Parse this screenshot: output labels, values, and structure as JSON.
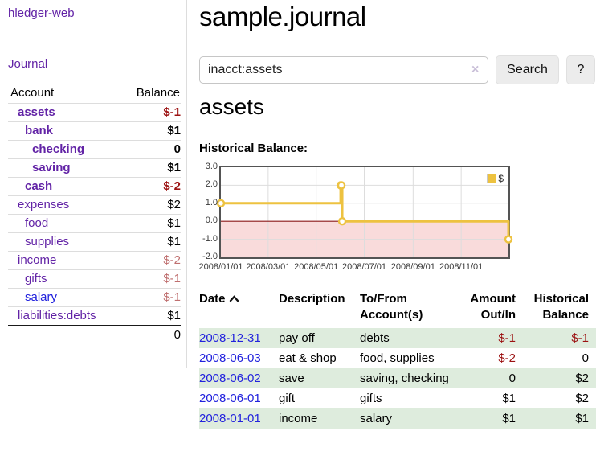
{
  "app": {
    "title": "hledger-web",
    "nav_journal": "Journal"
  },
  "sidebar": {
    "accounts_header": {
      "account": "Account",
      "balance": "Balance"
    },
    "accounts": [
      {
        "name": "assets",
        "depth": 1,
        "bold": true,
        "link_color": "purple",
        "balance": "$-1",
        "balance_style": "neg-strong"
      },
      {
        "name": "bank",
        "depth": 2,
        "bold": true,
        "link_color": "purple",
        "balance": "$1",
        "balance_style": "pos"
      },
      {
        "name": "checking",
        "depth": 3,
        "bold": true,
        "link_color": "purple",
        "balance": "0",
        "balance_style": "pos"
      },
      {
        "name": "saving",
        "depth": 3,
        "bold": true,
        "link_color": "purple",
        "balance": "$1",
        "balance_style": "pos"
      },
      {
        "name": "cash",
        "depth": 2,
        "bold": true,
        "link_color": "purple",
        "balance": "$-2",
        "balance_style": "neg-strong"
      },
      {
        "name": "expenses",
        "depth": 1,
        "bold": false,
        "link_color": "purple",
        "balance": "$2",
        "balance_style": "pos"
      },
      {
        "name": "food",
        "depth": 2,
        "bold": false,
        "link_color": "purple",
        "balance": "$1",
        "balance_style": "pos"
      },
      {
        "name": "supplies",
        "depth": 2,
        "bold": false,
        "link_color": "purple",
        "balance": "$1",
        "balance_style": "pos"
      },
      {
        "name": "income",
        "depth": 1,
        "bold": false,
        "link_color": "purple",
        "balance": "$-2",
        "balance_style": "neg-soft"
      },
      {
        "name": "gifts",
        "depth": 2,
        "bold": false,
        "link_color": "purple",
        "balance": "$-1",
        "balance_style": "neg-soft"
      },
      {
        "name": "salary",
        "depth": 2,
        "bold": false,
        "link_color": "blue",
        "balance": "$-1",
        "balance_style": "neg-soft"
      },
      {
        "name": "liabilities:debts",
        "depth": 1,
        "bold": false,
        "link_color": "purple",
        "balance": "$1",
        "balance_style": "pos"
      }
    ],
    "total": "0"
  },
  "main": {
    "title": "sample.journal",
    "search": {
      "value": "inacct:assets",
      "clear_icon": "×",
      "button": "Search",
      "help_button": "?"
    },
    "account_heading": "assets",
    "chart_label": "Historical Balance:"
  },
  "chart_data": {
    "type": "line",
    "step": true,
    "title": "Historical Balance",
    "series": [
      {
        "name": "$",
        "color": "#edc240",
        "points": [
          [
            "2008-01-01",
            1
          ],
          [
            "2008-06-01",
            2
          ],
          [
            "2008-06-02",
            2
          ],
          [
            "2008-06-03",
            0
          ],
          [
            "2008-12-31",
            -1
          ]
        ]
      }
    ],
    "x_range": [
      "2008-01-01",
      "2008-12-31"
    ],
    "x_ticks": [
      "2008/01/01",
      "2008/03/01",
      "2008/05/01",
      "2008/07/01",
      "2008/09/01",
      "2008/11/01"
    ],
    "y_ticks": [
      3,
      2,
      1,
      0,
      -1,
      -2
    ],
    "ylim": [
      -2,
      3
    ],
    "grid": true,
    "legend_position": "top-right",
    "negative_region_color": "#f9dbdb",
    "zero_line_color": "#8b1a1a",
    "grid_color": "#dddddd",
    "marker": {
      "fill": "#ffffff",
      "radius": 4
    }
  },
  "register": {
    "columns": [
      {
        "label": "Date",
        "sortable": true,
        "sort": "asc"
      },
      {
        "label": "Description"
      },
      {
        "label": "To/From Account(s)"
      },
      {
        "label": "Amount Out/In",
        "align": "right"
      },
      {
        "label": "Historical Balance",
        "align": "right"
      }
    ],
    "rows": [
      {
        "date": "2008-12-31",
        "description": "pay off",
        "accounts": "debts",
        "amount": "$-1",
        "amount_neg": true,
        "balance": "$-1",
        "balance_neg": true
      },
      {
        "date": "2008-06-03",
        "description": "eat & shop",
        "accounts": "food, supplies",
        "amount": "$-2",
        "amount_neg": true,
        "balance": "0",
        "balance_neg": false
      },
      {
        "date": "2008-06-02",
        "description": "save",
        "accounts": "saving, checking",
        "amount": "0",
        "amount_neg": false,
        "balance": "$2",
        "balance_neg": false
      },
      {
        "date": "2008-06-01",
        "description": "gift",
        "accounts": "gifts",
        "amount": "$1",
        "amount_neg": false,
        "balance": "$2",
        "balance_neg": false
      },
      {
        "date": "2008-01-01",
        "description": "income",
        "accounts": "salary",
        "amount": "$1",
        "amount_neg": false,
        "balance": "$1",
        "balance_neg": false
      }
    ]
  },
  "colors": {
    "link_purple": "#6223a6",
    "link_blue": "#2222dd",
    "negative_strong": "#9c1212",
    "negative_soft": "#bf6f6f",
    "row_green": "#deecdd",
    "chart_line": "#edc240",
    "chart_negative_bg": "#f9dbdb",
    "chart_zero_line": "#8b1a1a"
  }
}
